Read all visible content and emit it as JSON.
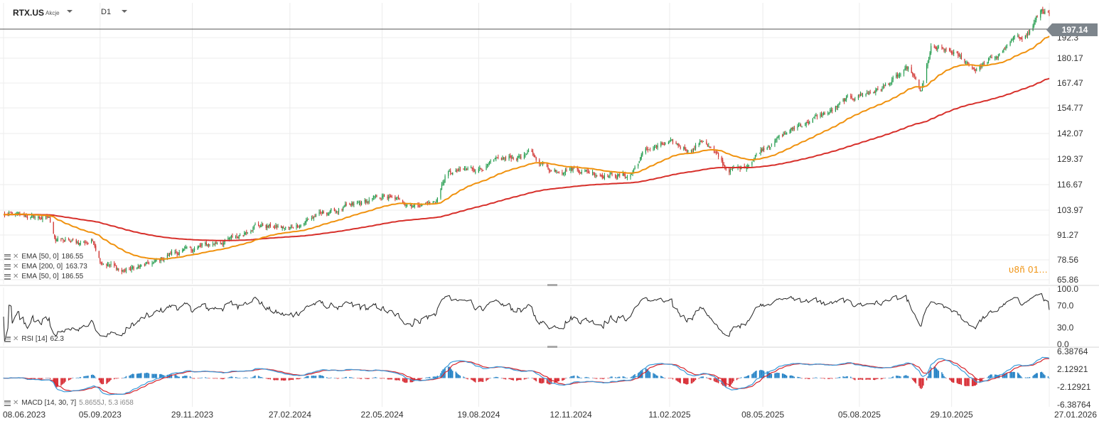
{
  "header": {
    "symbol": "RTX.US",
    "asset_type": "Akcje",
    "timeframe": "D1"
  },
  "price_tag": "197.14",
  "watermark": "υ8ñ 01...",
  "indicators": {
    "ema50_a": {
      "name": "EMA",
      "params": "[50,  0]",
      "value": "186.55"
    },
    "ema200": {
      "name": "EMA",
      "params": "[200,  0]",
      "value": "163.73"
    },
    "ema50_b": {
      "name": "EMA",
      "params": "[50,  0]",
      "value": "186.55"
    },
    "rsi": {
      "name": "RSI",
      "params": "[14]",
      "value": "62.3"
    },
    "macd": {
      "name": "MACD",
      "params": "[14, 30, 7]",
      "value": "5.8655J,  5.3 i658"
    }
  },
  "colors": {
    "bull": "#1f9a4a",
    "bear": "#d0322f",
    "ema50": "#f0920f",
    "ema200": "#d7302b",
    "macd_line": "#3a9ad9",
    "signal_line": "#d6252d",
    "hist_pos": "#1f7fc4",
    "hist_neg": "#d6252d",
    "rsi_line": "#222222",
    "grid": "#ececec",
    "price_line": "#555555"
  },
  "chart_data": [
    {
      "type": "candlestick",
      "title": "RTX.US",
      "x_tick_labels": [
        "08.06.2023",
        "05.09.2023",
        "29.11.2023",
        "27.02.2024",
        "22.05.2024",
        "19.08.2024",
        "12.11.2024",
        "11.02.2025",
        "08.05.2025",
        "05.08.2025",
        "29.10.2025",
        "27.01.2026"
      ],
      "y_tick_labels": [
        "65.86",
        "78.56",
        "91.27",
        "103.97",
        "116.67",
        "129.37",
        "142.07",
        "154.77",
        "167.47",
        "180.17",
        "192.3"
      ],
      "ylim": [
        65.86,
        199
      ],
      "last_price": 197.14,
      "price_path": [
        [
          "2023-06-08",
          98
        ],
        [
          "2023-07-01",
          97
        ],
        [
          "2023-07-20",
          96
        ],
        [
          "2023-07-26",
          86
        ],
        [
          "2023-08-15",
          84
        ],
        [
          "2023-08-30",
          85
        ],
        [
          "2023-09-05",
          76
        ],
        [
          "2023-09-25",
          70
        ],
        [
          "2023-10-10",
          72
        ],
        [
          "2023-10-25",
          74
        ],
        [
          "2023-11-10",
          79
        ],
        [
          "2023-11-29",
          81
        ],
        [
          "2023-12-20",
          84
        ],
        [
          "2024-01-10",
          87
        ],
        [
          "2024-01-25",
          93
        ],
        [
          "2024-02-27",
          91
        ],
        [
          "2024-03-20",
          97
        ],
        [
          "2024-04-15",
          101
        ],
        [
          "2024-04-25",
          102
        ],
        [
          "2024-05-22",
          107
        ],
        [
          "2024-06-20",
          103
        ],
        [
          "2024-07-10",
          104
        ],
        [
          "2024-07-20",
          118
        ],
        [
          "2024-08-19",
          121
        ],
        [
          "2024-09-10",
          125
        ],
        [
          "2024-10-05",
          128
        ],
        [
          "2024-10-25",
          120
        ],
        [
          "2024-11-12",
          121
        ],
        [
          "2024-12-10",
          118
        ],
        [
          "2025-01-05",
          117
        ],
        [
          "2025-01-20",
          130
        ],
        [
          "2025-02-11",
          133
        ],
        [
          "2025-03-01",
          130
        ],
        [
          "2025-03-15",
          135
        ],
        [
          "2025-04-05",
          120
        ],
        [
          "2025-04-20",
          121
        ],
        [
          "2025-05-08",
          131
        ],
        [
          "2025-06-10",
          142
        ],
        [
          "2025-07-10",
          149
        ],
        [
          "2025-07-25",
          155
        ],
        [
          "2025-08-05",
          157
        ],
        [
          "2025-08-25",
          160
        ],
        [
          "2025-09-20",
          170
        ],
        [
          "2025-10-01",
          158
        ],
        [
          "2025-10-10",
          180
        ],
        [
          "2025-10-29",
          178
        ],
        [
          "2025-11-20",
          170
        ],
        [
          "2025-12-10",
          176
        ],
        [
          "2025-12-25",
          184
        ],
        [
          "2026-01-08",
          188
        ],
        [
          "2026-01-20",
          199
        ],
        [
          "2026-01-27",
          197
        ]
      ],
      "series": [
        {
          "name": "EMA [50,  0]",
          "last": 186.55
        },
        {
          "name": "EMA [200,  0]",
          "last": 163.73
        }
      ]
    },
    {
      "type": "line",
      "title": "RSI [14]",
      "y_tick_labels": [
        "100.0",
        "70.0",
        "30.0",
        "0.0"
      ],
      "ylim": [
        0,
        100
      ],
      "last": 62.3
    },
    {
      "type": "bar",
      "title": "MACD [14, 30, 7]",
      "y_tick_labels": [
        "6.38764",
        "2.12921",
        "-2.12921",
        "-6.38764"
      ],
      "ylim": [
        -6.38764,
        6.38764
      ]
    }
  ]
}
